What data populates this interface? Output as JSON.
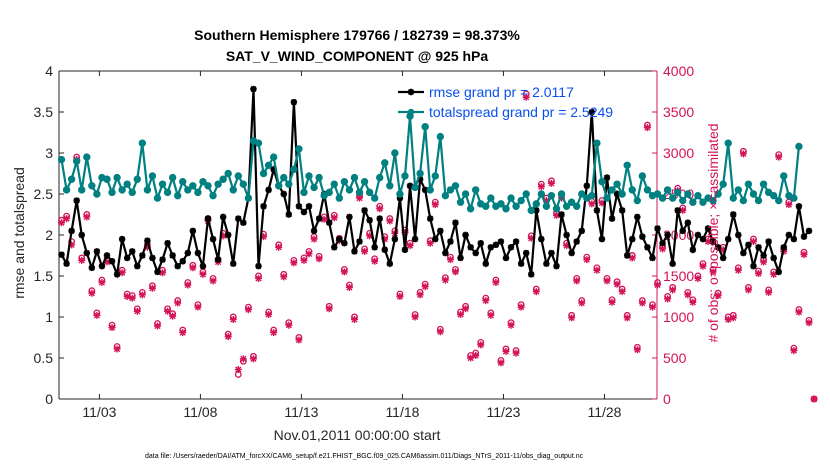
{
  "chart_data": {
    "type": "line",
    "title_line1": "Southern Hemisphere 179766 / 182739 = 98.373%",
    "title_line2": "SAT_V_WIND_COMPONENT @ 925 hPa",
    "xlabel": "Nov.01,2011 00:00:00 start",
    "ylabel_left": "rmse and totalspread",
    "ylabel_right": "# of obs: o=possible; ×=assimilated",
    "footer": "data file: /Users/raeder/DAI/ATM_forcXX/CAM6_setup/f.e21.FHIST_BGC.f09_025.CAM6assim.011/Diags_NTrS_2011-11/obs_diag_output.nc",
    "x_range_days": [
      1.0,
      30.6
    ],
    "x_ticks": [
      {
        "day": 3,
        "label": "11/03"
      },
      {
        "day": 8,
        "label": "11/08"
      },
      {
        "day": 13,
        "label": "11/13"
      },
      {
        "day": 18,
        "label": "11/18"
      },
      {
        "day": 23,
        "label": "11/23"
      },
      {
        "day": 28,
        "label": "11/28"
      }
    ],
    "ylim_left": [
      0,
      4
    ],
    "yticks_left": [
      "0",
      "0.5",
      "1",
      "1.5",
      "2",
      "2.5",
      "3",
      "3.5",
      "4"
    ],
    "ylim_right": [
      0,
      4000
    ],
    "yticks_right": [
      "0",
      "500",
      "1000",
      "1500",
      "2000",
      "2500",
      "3000",
      "3500",
      "4000"
    ],
    "time_step_days": 0.25,
    "start_day": 1.125,
    "series": [
      {
        "name": "rmse grand pr = 2.0117",
        "color": "#000000",
        "values": [
          1.76,
          1.65,
          2.05,
          2.42,
          2.0,
          1.78,
          1.6,
          1.8,
          1.62,
          1.75,
          1.68,
          1.52,
          1.95,
          1.72,
          1.8,
          1.62,
          1.75,
          1.93,
          1.72,
          1.55,
          1.7,
          1.9,
          1.75,
          1.62,
          1.68,
          1.78,
          2.05,
          1.78,
          1.62,
          2.2,
          1.95,
          1.7,
          2.22,
          2.0,
          1.65,
          2.2,
          2.15,
          2.45,
          3.78,
          1.62,
          2.35,
          2.55,
          2.8,
          2.6,
          2.5,
          2.25,
          3.62,
          2.35,
          2.28,
          2.35,
          2.05,
          2.2,
          2.5,
          2.15,
          1.85,
          1.95,
          1.9,
          2.22,
          1.8,
          1.92,
          2.3,
          2.18,
          1.85,
          2.2,
          1.82,
          1.65,
          1.95,
          2.45,
          1.82,
          2.6,
          1.95,
          2.68,
          2.55,
          2.2,
          1.95,
          2.05,
          1.78,
          1.92,
          2.15,
          1.72,
          2.0,
          1.85,
          1.78,
          1.9,
          1.65,
          1.85,
          1.88,
          1.92,
          1.72,
          1.85,
          1.92,
          1.65,
          1.78,
          1.52,
          2.3,
          1.95,
          1.65,
          1.78,
          1.62,
          2.25,
          2.0,
          1.78,
          1.92,
          2.05,
          2.6,
          3.5,
          2.3,
          1.95,
          2.7,
          2.2,
          2.5,
          2.3,
          1.75,
          1.95,
          2.22,
          1.98,
          1.85,
          1.72,
          2.08,
          1.9,
          2.0,
          1.65,
          2.3,
          2.05,
          2.15,
          1.82,
          2.0,
          1.95,
          2.08,
          1.92,
          1.85,
          1.72,
          1.95,
          2.25,
          2.0,
          1.78,
          1.88,
          1.62,
          1.85,
          1.75,
          1.92,
          1.72,
          1.55,
          1.85,
          2.0,
          1.95,
          2.35,
          1.98,
          2.05
        ]
      },
      {
        "name": "totalspread grand pr = 2.5249",
        "color": "#008080",
        "values": [
          2.92,
          2.55,
          2.68,
          2.9,
          2.55,
          2.95,
          2.6,
          2.5,
          2.7,
          2.68,
          2.52,
          2.7,
          2.55,
          2.62,
          2.52,
          2.68,
          3.12,
          2.55,
          2.72,
          2.45,
          2.62,
          2.52,
          2.7,
          2.48,
          2.65,
          2.55,
          2.6,
          2.52,
          2.65,
          2.6,
          2.48,
          2.62,
          2.68,
          2.75,
          2.55,
          2.72,
          2.62,
          2.45,
          3.15,
          3.12,
          2.75,
          2.85,
          2.95,
          2.6,
          2.7,
          2.62,
          2.8,
          3.05,
          2.52,
          2.72,
          2.58,
          2.7,
          2.48,
          2.52,
          2.62,
          2.45,
          2.65,
          2.55,
          2.7,
          2.52,
          2.65,
          2.52,
          2.45,
          2.7,
          2.88,
          2.6,
          3.0,
          2.5,
          2.72,
          3.45,
          2.58,
          2.75,
          3.32,
          2.55,
          2.72,
          3.2,
          2.48,
          2.55,
          2.6,
          2.4,
          2.5,
          2.32,
          2.55,
          2.38,
          2.35,
          2.45,
          2.35,
          2.38,
          2.32,
          2.45,
          2.35,
          2.42,
          2.5,
          2.3,
          2.38,
          2.5,
          2.35,
          2.48,
          2.32,
          2.5,
          2.35,
          2.4,
          2.35,
          2.5,
          2.45,
          2.48,
          3.12,
          2.65,
          2.45,
          2.55,
          2.62,
          2.5,
          2.85,
          2.55,
          2.42,
          2.72,
          2.55,
          2.48,
          2.5,
          2.45,
          2.55,
          2.45,
          2.52,
          2.42,
          2.5,
          2.4,
          2.48,
          2.4,
          2.45,
          2.42,
          2.5,
          2.62,
          3.12,
          2.45,
          2.55,
          2.42,
          2.62,
          2.5,
          2.42,
          2.62,
          2.52,
          2.48,
          2.42,
          2.72,
          2.48,
          2.45,
          3.08
        ]
      }
    ],
    "obs_possible": [
      2180,
      2230,
      1920,
      2950,
      1720,
      2250,
      1320,
      1050,
      1450,
      1700,
      900,
      640,
      1570,
      1280,
      1260,
      1100,
      1300,
      1880,
      1380,
      920,
      1570,
      1100,
      1040,
      1200,
      840,
      1420,
      1630,
      1150,
      1550,
      2200,
      1470,
      1700,
      2020,
      790,
      1000,
      300,
      460,
      1120,
      520,
      1500,
      2010,
      1060,
      840,
      1880,
      1520,
      930,
      1690,
      750,
      1720,
      1800,
      1980,
      1740,
      2220,
      1130,
      2240,
      1960,
      1580,
      1390,
      1000,
      2480,
      1830,
      2020,
      1710,
      2350,
      1980,
      2200,
      2050,
      1280,
      2060,
      1900,
      1030,
      1300,
      1400,
      1930,
      2400,
      850,
      1480,
      1730,
      1580,
      1060,
      1130,
      530,
      560,
      690,
      1230,
      1050,
      1450,
      470,
      610,
      930,
      590,
      1150,
      3720,
      1990,
      1340,
      2620,
      2450,
      2660,
      2270,
      2480,
      1900,
      1020,
      1470,
      1200,
      1730,
      2410,
      1600,
      2420,
      1470,
      1210,
      1430,
      1340,
      1020,
      1750,
      630,
      1200,
      3340,
      1150,
      1420,
      1860,
      1250,
      1360,
      2570,
      2330,
      1300,
      1210,
      1500,
      1650,
      1950,
      1580,
      1290,
      1850,
      1000,
      1020,
      1600,
      3020,
      1360,
      1950,
      1560,
      1700,
      1330,
      1550,
      2980,
      1830,
      2400,
      620,
      1090,
      1790,
      960,
      0
    ],
    "obs_assimilated": [
      2150,
      2200,
      1880,
      2920,
      1690,
      2220,
      1290,
      1020,
      1420,
      1670,
      870,
      610,
      1540,
      1250,
      1230,
      1070,
      1270,
      1850,
      1350,
      890,
      1540,
      1070,
      1010,
      1170,
      810,
      1390,
      1600,
      1120,
      1520,
      2170,
      1440,
      1670,
      1990,
      760,
      970,
      360,
      490,
      1090,
      490,
      1470,
      1980,
      1030,
      810,
      1850,
      1490,
      900,
      1660,
      720,
      1690,
      1770,
      1950,
      1710,
      2190,
      1100,
      2210,
      1930,
      1550,
      1360,
      970,
      2450,
      1800,
      1990,
      1680,
      2320,
      1950,
      2170,
      2020,
      1250,
      2030,
      1870,
      1000,
      1270,
      1370,
      1900,
      2370,
      820,
      1450,
      1700,
      1550,
      1030,
      1100,
      500,
      530,
      660,
      1200,
      1020,
      1420,
      440,
      580,
      900,
      560,
      1120,
      3680,
      1960,
      1310,
      2590,
      2420,
      2630,
      2240,
      2450,
      1870,
      990,
      1440,
      1170,
      1700,
      2380,
      1570,
      2390,
      1440,
      1180,
      1400,
      1310,
      990,
      1720,
      600,
      1170,
      3310,
      1120,
      1390,
      1830,
      1220,
      1330,
      2540,
      2300,
      1270,
      1180,
      1470,
      1620,
      1920,
      1550,
      1260,
      1820,
      970,
      990,
      1570,
      2990,
      1330,
      1920,
      1530,
      1670,
      1300,
      1520,
      2950,
      1800,
      2370,
      590,
      1060,
      1760,
      930,
      0
    ]
  }
}
